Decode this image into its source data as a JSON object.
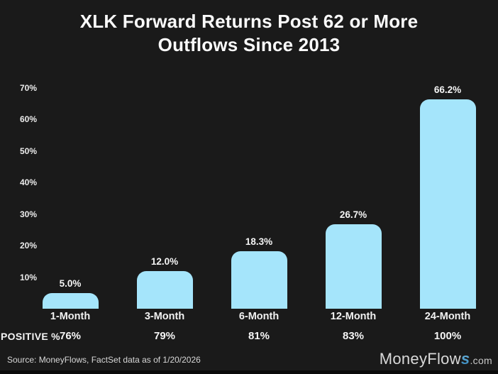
{
  "title_lines": [
    "XLK Forward Returns Post 62 or More",
    "Outflows Since 2013"
  ],
  "chart_data": {
    "type": "bar",
    "title": "XLK Forward Returns Post 62 or More Outflows Since 2013",
    "categories": [
      "1-Month",
      "3-Month",
      "6-Month",
      "12-Month",
      "24-Month"
    ],
    "values": [
      5.0,
      12.0,
      18.3,
      26.7,
      66.2
    ],
    "value_labels": [
      "5.0%",
      "12.0%",
      "18.3%",
      "26.7%",
      "66.2%"
    ],
    "xlabel": "",
    "ylabel": "",
    "ylim": [
      0,
      75
    ],
    "yticks": [
      10,
      20,
      30,
      40,
      50,
      60,
      70
    ],
    "ytick_labels": [
      "10%",
      "20%",
      "30%",
      "40%",
      "50%",
      "60%",
      "70%"
    ],
    "grid": false,
    "legend": "none",
    "bar_color": "#a5e5fb",
    "positive_row": {
      "label": "POSITIVE %",
      "values": [
        "76%",
        "79%",
        "81%",
        "83%",
        "100%"
      ]
    }
  },
  "footer": {
    "source": "Source: MoneyFlows, FactSet data as of 1/20/2026",
    "logo": {
      "prefix": "MoneyFlow",
      "s": "s",
      "suffix": ".com"
    }
  },
  "colors": {
    "background": "#1a1a1a",
    "bar": "#a5e5fb",
    "text": "#fafafa",
    "logo_s": "#4aa3d9"
  }
}
